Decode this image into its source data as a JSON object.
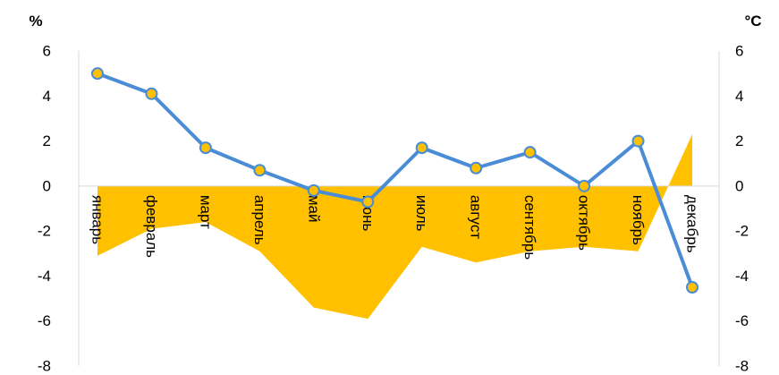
{
  "chart_data": {
    "type": "line",
    "left_axis_unit": "%",
    "right_axis_unit": "°C",
    "categories": [
      "январь",
      "февраль",
      "март",
      "апрель",
      "май",
      "июнь",
      "июль",
      "август",
      "сентябрь",
      "октябрь",
      "ноябрь",
      "декабрь"
    ],
    "series": [
      {
        "axis": "left",
        "type": "area",
        "color": "#FFC000",
        "values": [
          -3.1,
          -1.9,
          -1.6,
          -2.9,
          -5.4,
          -5.9,
          -2.7,
          -3.4,
          -2.9,
          -2.7,
          -2.9,
          2.3
        ]
      },
      {
        "axis": "right",
        "type": "line",
        "color": "#4A8CD6",
        "marker_color": "#FFC000",
        "values": [
          5.0,
          4.1,
          1.7,
          0.7,
          -0.2,
          -0.7,
          1.7,
          0.8,
          1.5,
          0.0,
          2.0,
          -4.5
        ]
      }
    ],
    "y_left": {
      "range": [
        -8,
        6
      ],
      "ticks": [
        "6",
        "4",
        "2",
        "0",
        "-2",
        "-4",
        "-6",
        "-8"
      ]
    },
    "y_right": {
      "range": [
        -8,
        6
      ],
      "ticks": [
        "6",
        "4",
        "2",
        "0",
        "-2",
        "-4",
        "-6",
        "-8"
      ]
    },
    "grid": false,
    "legend": "none"
  }
}
